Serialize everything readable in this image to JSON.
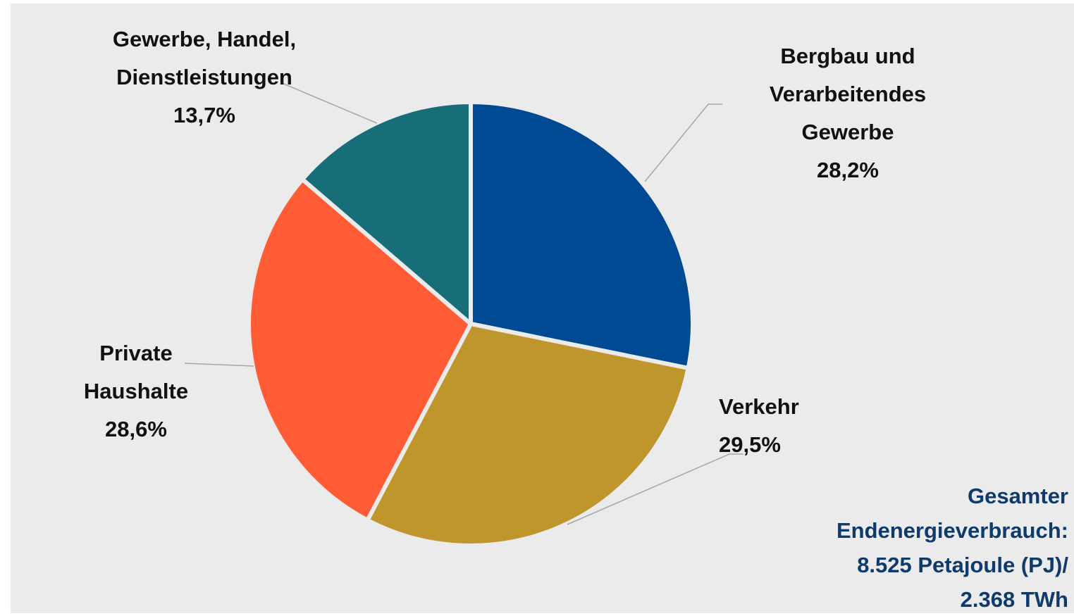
{
  "chart_data": {
    "type": "pie",
    "categories": [
      "Bergbau und Verarbeitendes Gewerbe",
      "Verkehr",
      "Private Haushalte",
      "Gewerbe, Handel, Dienstleistungen"
    ],
    "values": [
      28.2,
      29.5,
      28.6,
      13.7
    ],
    "value_labels": [
      "28,2%",
      "29,5%",
      "28,6%",
      "13,7%"
    ],
    "colors": [
      "#004a93",
      "#bf962b",
      "#ff5c35",
      "#176e78"
    ],
    "annotation": [
      "Gesamter",
      "Endenergieverbrauch:",
      "8.525 Petajoule (PJ)/",
      "2.368 TWh"
    ]
  }
}
